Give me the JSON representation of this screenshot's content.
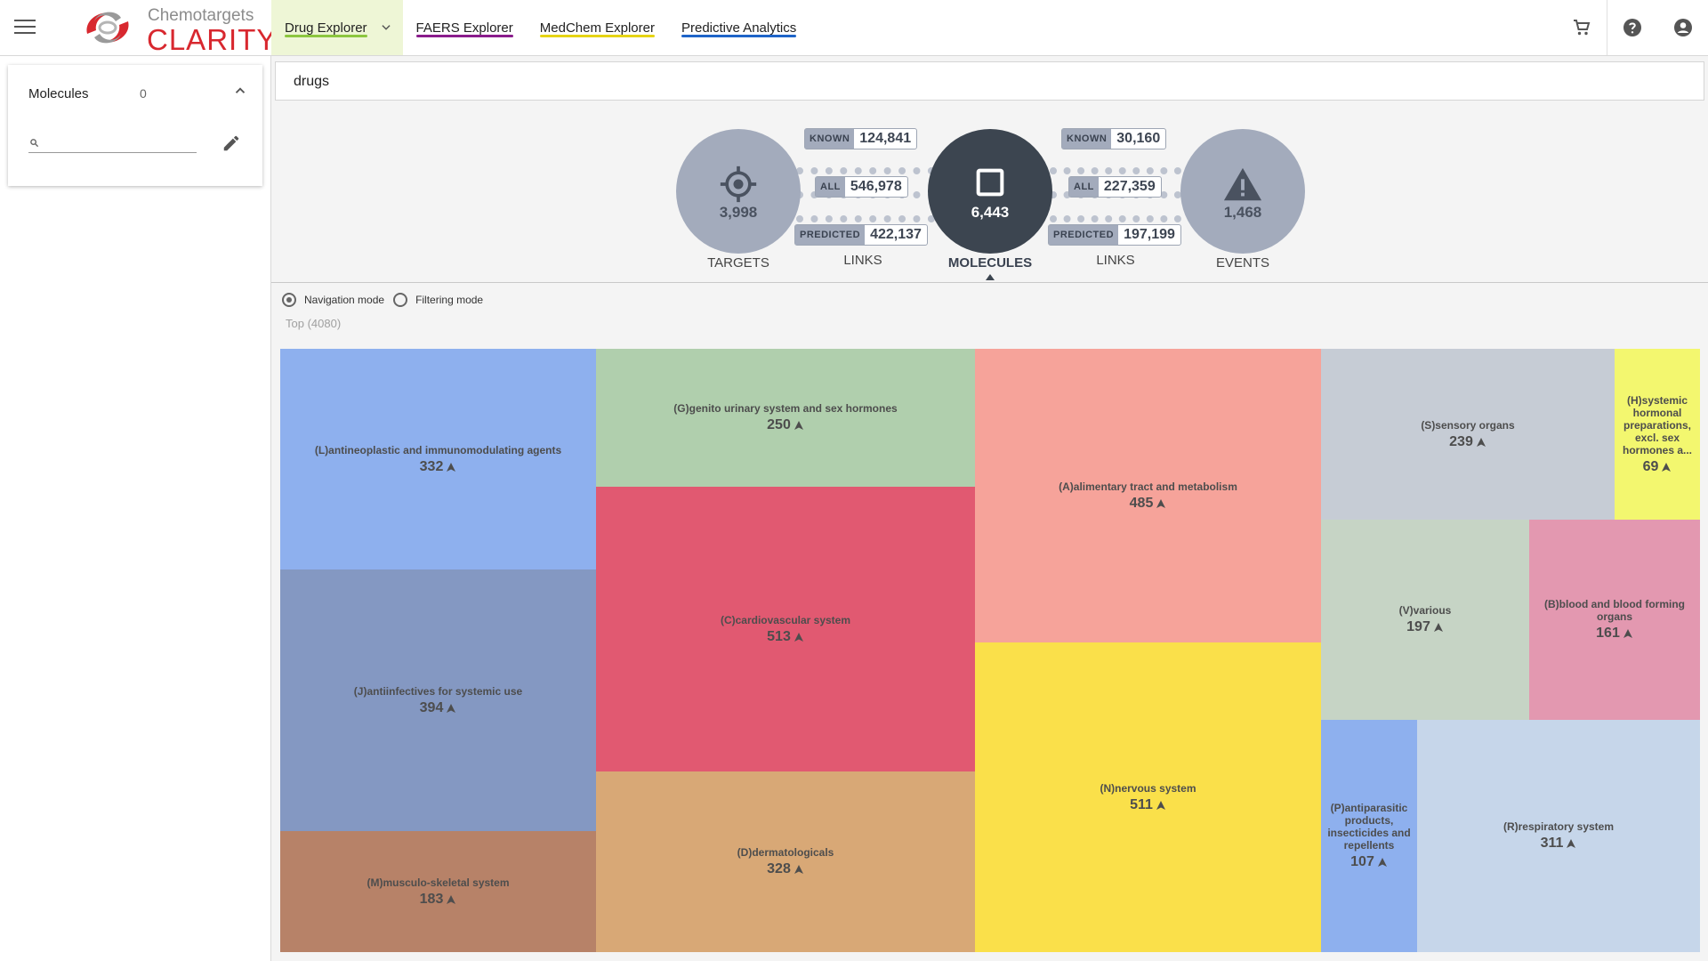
{
  "brand": {
    "top": "Chemotargets",
    "main": "CLARITY"
  },
  "nav": [
    {
      "label": "Drug Explorer",
      "color": "#8cc63f",
      "active": true
    },
    {
      "label": "FAERS Explorer",
      "color": "#8a1c8c"
    },
    {
      "label": "MedChem Explorer",
      "color": "#e6d414"
    },
    {
      "label": "Predictive Analytics",
      "color": "#1e64c8"
    }
  ],
  "icons": {
    "menu": "hamburger-icon",
    "cart": "cart-icon",
    "help": "help-icon",
    "account": "account-icon"
  },
  "left_panel": {
    "title": "Molecules",
    "count": "0",
    "search_value": ""
  },
  "query": {
    "value": "drugs"
  },
  "flow": {
    "targets": {
      "count": "3,998",
      "label": "TARGETS",
      "icon": "target-icon"
    },
    "molecules": {
      "count": "6,443",
      "label": "MOLECULES",
      "icon": "square-icon"
    },
    "events": {
      "count": "1,468",
      "label": "EVENTS",
      "icon": "warning-icon"
    },
    "links_left": {
      "label": "LINKS",
      "known_label": "KNOWN",
      "known": "124,841",
      "all_label": "ALL",
      "all": "546,978",
      "predicted_label": "PREDICTED",
      "predicted": "422,137"
    },
    "links_right": {
      "label": "LINKS",
      "known_label": "KNOWN",
      "known": "30,160",
      "all_label": "ALL",
      "all": "227,359",
      "predicted_label": "PREDICTED",
      "predicted": "197,199"
    }
  },
  "modes": {
    "navigation": "Navigation mode",
    "filtering": "Filtering mode",
    "selected": "navigation"
  },
  "breadcrumb": "Top (4080)",
  "treemap": [
    {
      "name": "(L)antineoplastic and immunomodulating agents",
      "value": "332",
      "color": "#8eb0ee"
    },
    {
      "name": "(J)antiinfectives for systemic use",
      "value": "394",
      "color": "#8498c2"
    },
    {
      "name": "(M)musculo-skeletal system",
      "value": "183",
      "color": "#b78268"
    },
    {
      "name": "(G)genito urinary system and sex hormones",
      "value": "250",
      "color": "#b0cfad"
    },
    {
      "name": "(C)cardiovascular system",
      "value": "513",
      "color": "#e15971"
    },
    {
      "name": "(D)dermatologicals",
      "value": "328",
      "color": "#d8a876"
    },
    {
      "name": "(A)alimentary tract and metabolism",
      "value": "485",
      "color": "#f6a39a"
    },
    {
      "name": "(N)nervous system",
      "value": "511",
      "color": "#fae04a"
    },
    {
      "name": "(S)sensory organs",
      "value": "239",
      "color": "#c6ccd5"
    },
    {
      "name": "(H)systemic hormonal preparations, excl. sex hormones a...",
      "value": "69",
      "color": "#f3f76f"
    },
    {
      "name": "(V)various",
      "value": "197",
      "color": "#c6d4c5"
    },
    {
      "name": "(B)blood and blood forming organs",
      "value": "161",
      "color": "#e398b0"
    },
    {
      "name": "(P)antiparasitic products, insecticides and repellents",
      "value": "107",
      "color": "#8eb0ee"
    },
    {
      "name": "(R)respiratory system",
      "value": "311",
      "color": "#c6d6ea"
    }
  ]
}
